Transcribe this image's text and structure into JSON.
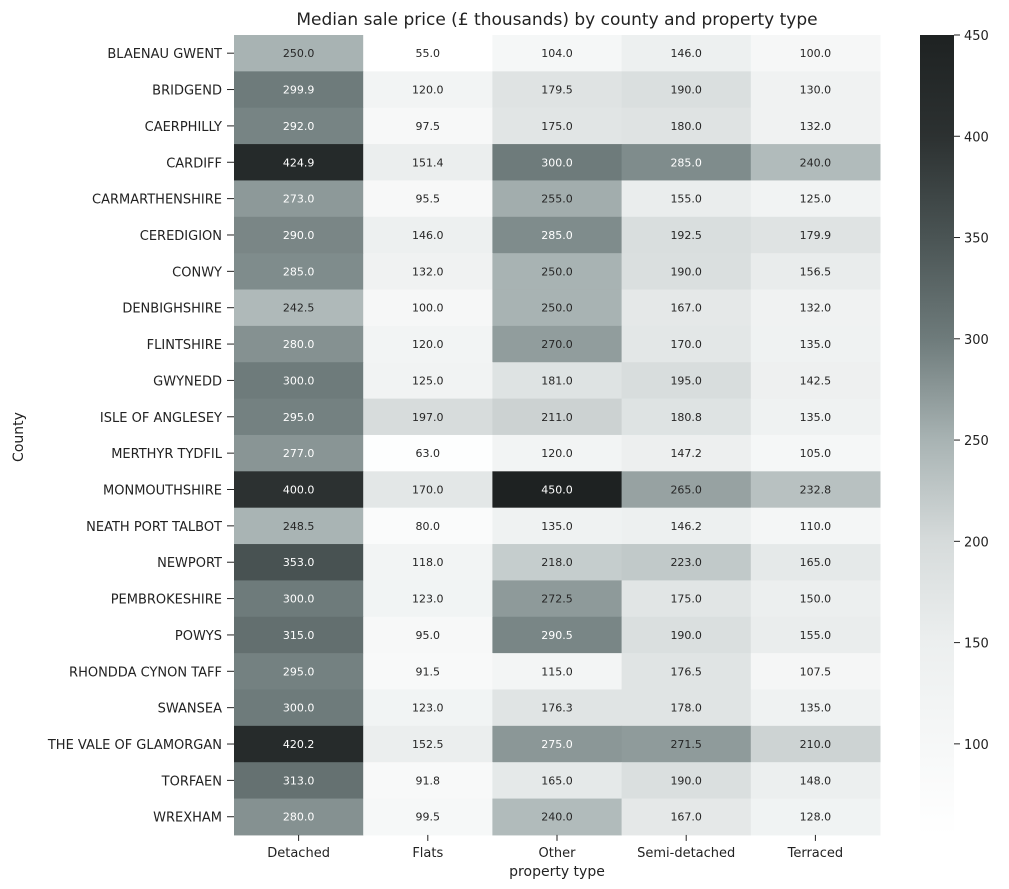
{
  "chart_data": {
    "type": "heatmap",
    "title": "Median sale price (£ thousands) by county and property type",
    "xlabel": "property type",
    "ylabel": "County",
    "columns": [
      "Detached",
      "Flats",
      "Other",
      "Semi-detached",
      "Terraced"
    ],
    "rows": [
      "BLAENAU GWENT",
      "BRIDGEND",
      "CAERPHILLY",
      "CARDIFF",
      "CARMARTHENSHIRE",
      "CEREDIGION",
      "CONWY",
      "DENBIGHSHIRE",
      "FLINTSHIRE",
      "GWYNEDD",
      "ISLE OF ANGLESEY",
      "MERTHYR TYDFIL",
      "MONMOUTHSHIRE",
      "NEATH PORT TALBOT",
      "NEWPORT",
      "PEMBROKESHIRE",
      "POWYS",
      "RHONDDA CYNON TAFF",
      "SWANSEA",
      "THE VALE OF GLAMORGAN",
      "TORFAEN",
      "WREXHAM"
    ],
    "values": [
      [
        250.0,
        55.0,
        104.0,
        146.0,
        100.0
      ],
      [
        299.9,
        120.0,
        179.5,
        190.0,
        130.0
      ],
      [
        292.0,
        97.5,
        175.0,
        180.0,
        132.0
      ],
      [
        424.9,
        151.4,
        300.0,
        285.0,
        240.0
      ],
      [
        273.0,
        95.5,
        255.0,
        155.0,
        125.0
      ],
      [
        290.0,
        146.0,
        285.0,
        192.5,
        179.9
      ],
      [
        285.0,
        132.0,
        250.0,
        190.0,
        156.5
      ],
      [
        242.5,
        100.0,
        250.0,
        167.0,
        132.0
      ],
      [
        280.0,
        120.0,
        270.0,
        170.0,
        135.0
      ],
      [
        300.0,
        125.0,
        181.0,
        195.0,
        142.5
      ],
      [
        295.0,
        197.0,
        211.0,
        180.8,
        135.0
      ],
      [
        277.0,
        63.0,
        120.0,
        147.2,
        105.0
      ],
      [
        400.0,
        170.0,
        450.0,
        265.0,
        232.8
      ],
      [
        248.5,
        80.0,
        135.0,
        146.2,
        110.0
      ],
      [
        353.0,
        118.0,
        218.0,
        223.0,
        165.0
      ],
      [
        300.0,
        123.0,
        272.5,
        175.0,
        150.0
      ],
      [
        315.0,
        95.0,
        290.5,
        190.0,
        155.0
      ],
      [
        295.0,
        91.5,
        115.0,
        176.5,
        107.5
      ],
      [
        300.0,
        123.0,
        176.3,
        178.0,
        135.0
      ],
      [
        420.2,
        152.5,
        275.0,
        271.5,
        210.0
      ],
      [
        313.0,
        91.8,
        165.0,
        190.0,
        148.0
      ],
      [
        280.0,
        99.5,
        240.0,
        167.0,
        128.0
      ]
    ],
    "value_format": "one decimal",
    "colorscale": {
      "min": 55,
      "max": 450,
      "ticks": [
        100,
        150,
        200,
        250,
        300,
        350,
        400,
        450
      ],
      "stops": [
        {
          "v": 55,
          "color": "#ffffff"
        },
        {
          "v": 150,
          "color": "#ecefef"
        },
        {
          "v": 200,
          "color": "#d6dbdb"
        },
        {
          "v": 250,
          "color": "#a8b3b3"
        },
        {
          "v": 300,
          "color": "#6e7b7b"
        },
        {
          "v": 350,
          "color": "#4a5454"
        },
        {
          "v": 400,
          "color": "#2c3131"
        },
        {
          "v": 450,
          "color": "#1e2222"
        }
      ]
    }
  }
}
